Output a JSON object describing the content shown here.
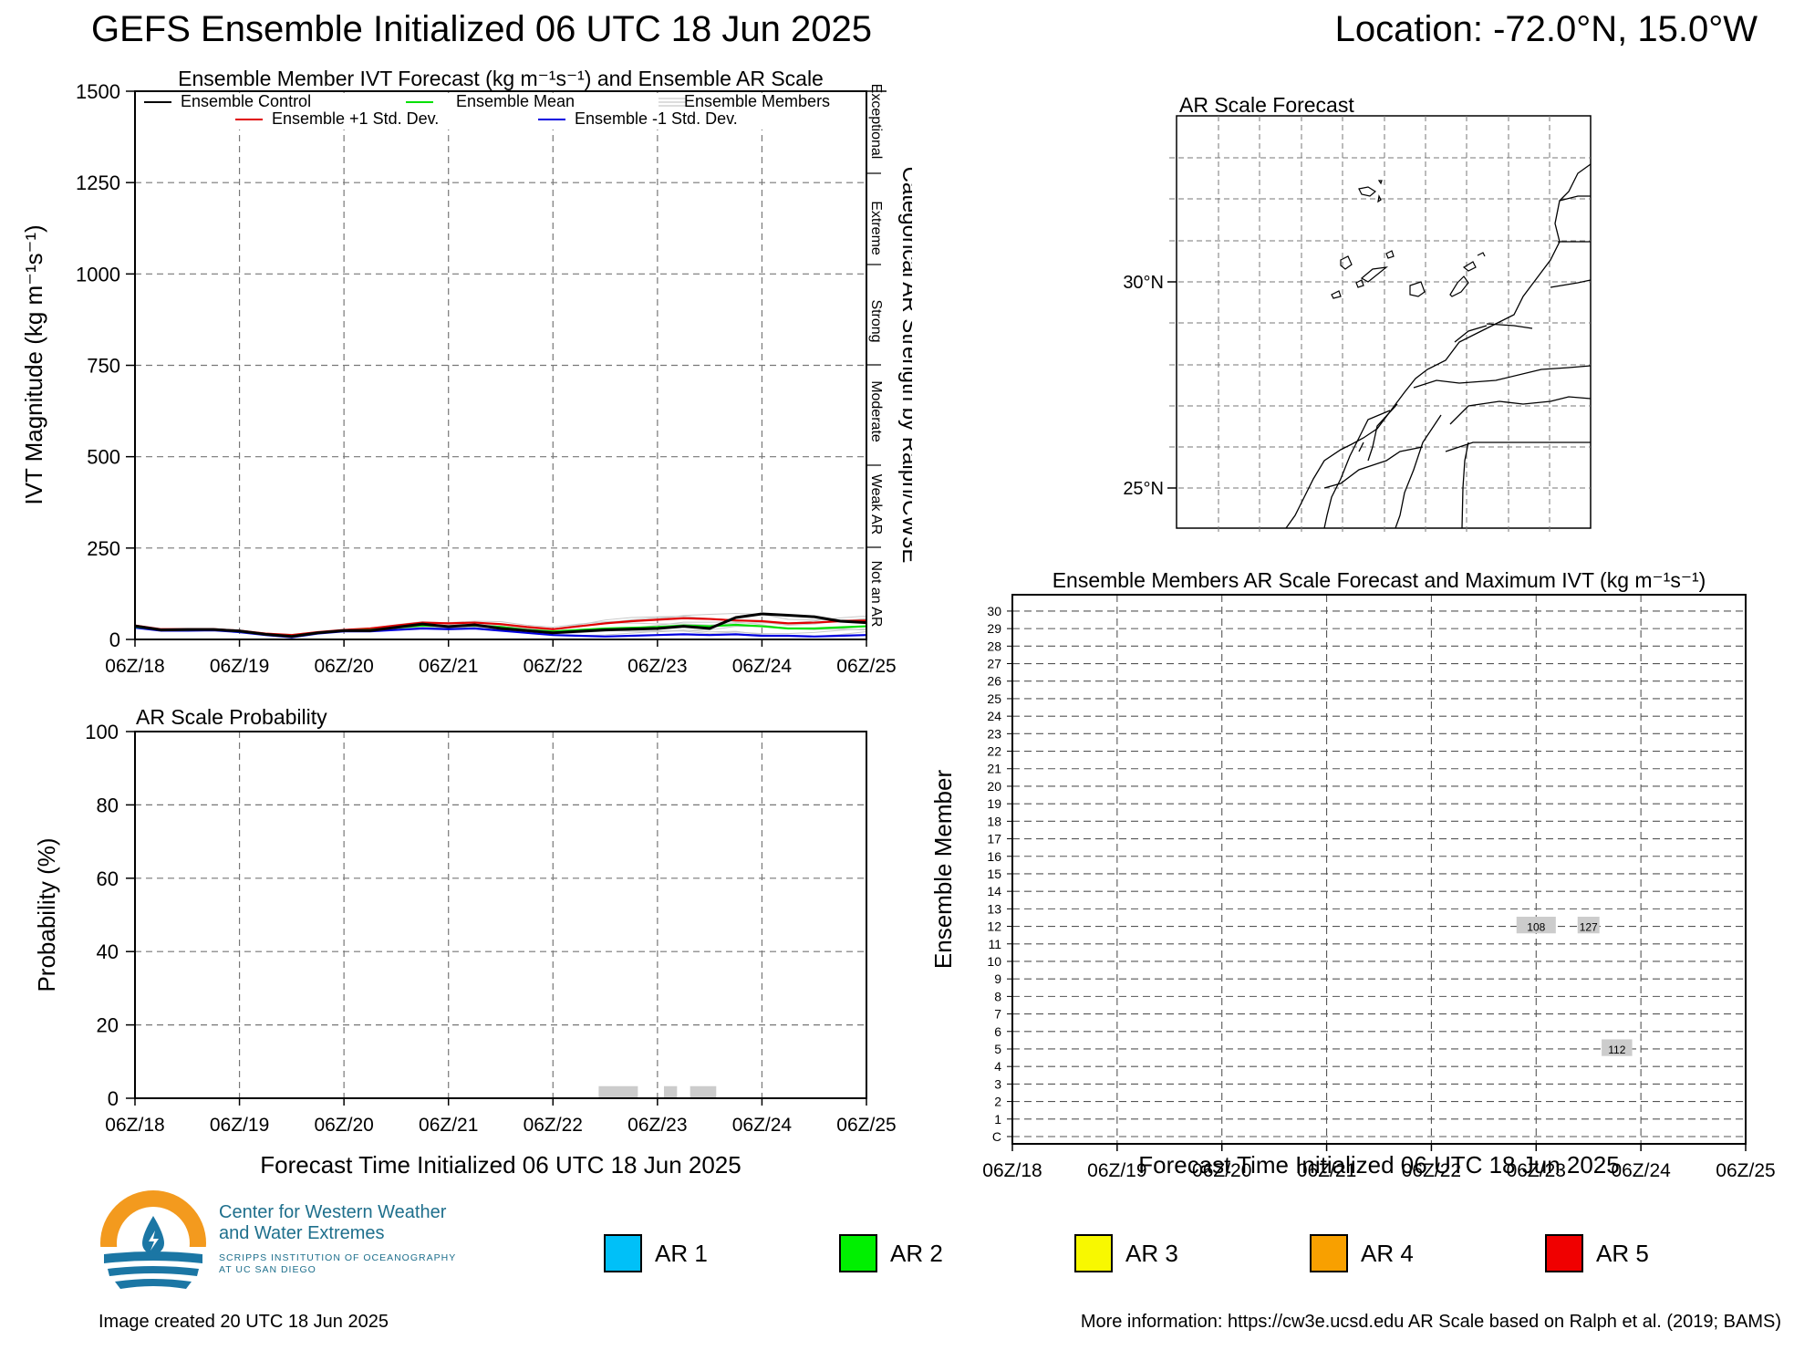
{
  "header": {
    "title": "GEFS Ensemble Initialized 06 UTC 18 Jun 2025",
    "location": "Location: -72.0°N, 15.0°W"
  },
  "x_ticks": [
    "06Z/18",
    "06Z/19",
    "06Z/20",
    "06Z/21",
    "06Z/22",
    "06Z/23",
    "06Z/24",
    "06Z/25"
  ],
  "x_axis_title": "Forecast Time Initialized 06 UTC 18 Jun 2025",
  "legend": {
    "control": "Ensemble Control",
    "mean": "Ensemble Mean",
    "members": "Ensemble Members",
    "plus": "Ensemble +1 Std. Dev.",
    "minus": "Ensemble -1 Std. Dev."
  },
  "ar_categories": [
    "Exceptional",
    "Extreme",
    "Strong",
    "Moderate",
    "Weak AR",
    "Not an AR"
  ],
  "ar_axis_title": "Categorical AR Strength by Ralph/CW3E",
  "map": {
    "title": "AR Scale Forecast",
    "lat_labels": [
      "30°N",
      "25°N"
    ]
  },
  "member_labels": [
    "C",
    "1",
    "2",
    "3",
    "4",
    "5",
    "6",
    "7",
    "8",
    "9",
    "10",
    "11",
    "12",
    "13",
    "14",
    "15",
    "16",
    "17",
    "18",
    "19",
    "20",
    "21",
    "22",
    "23",
    "24",
    "25",
    "26",
    "27",
    "28",
    "29",
    "30"
  ],
  "member_axis_title": "Ensemble Member",
  "ar_legend": [
    {
      "label": "AR 1",
      "color": "#00c0f8"
    },
    {
      "label": "AR 2",
      "color": "#00f000"
    },
    {
      "label": "AR 3",
      "color": "#f8f800"
    },
    {
      "label": "AR 4",
      "color": "#f8a000"
    },
    {
      "label": "AR 5",
      "color": "#f00000"
    }
  ],
  "logo": {
    "line1": "Center for Western Weather",
    "line2": "and Water Extremes",
    "line3": "SCRIPPS INSTITUTION OF OCEANOGRAPHY",
    "line4": "AT UC SAN DIEGO"
  },
  "footer": {
    "left": "Image created 20 UTC 18 Jun 2025",
    "right": "More information: https://cw3e.ucsd.edu AR Scale based on Ralph et al. (2019; BAMS)"
  },
  "chart_data": [
    {
      "type": "line",
      "title": "Ensemble Member IVT Forecast (kg m⁻¹s⁻¹) and Ensemble AR Scale",
      "ylabel": "IVT Magnitude (kg m⁻¹s⁻¹)",
      "ylim": [
        0,
        1500
      ],
      "yticks": [
        0,
        250,
        500,
        750,
        1000,
        1250,
        1500
      ],
      "xlim": [
        0,
        168
      ],
      "x": [
        0,
        6,
        12,
        18,
        24,
        30,
        36,
        42,
        48,
        54,
        60,
        66,
        72,
        78,
        84,
        90,
        96,
        102,
        108,
        114,
        120,
        126,
        132,
        138,
        144,
        150,
        156,
        162,
        168
      ],
      "series": [
        {
          "name": "Ensemble Control",
          "color": "#000000",
          "values": [
            37,
            26,
            27,
            27,
            23,
            14,
            8,
            18,
            24,
            24,
            33,
            42,
            35,
            40,
            30,
            24,
            18,
            22,
            26,
            28,
            30,
            36,
            30,
            60,
            70,
            66,
            62,
            50,
            46
          ]
        },
        {
          "name": "Ensemble Mean",
          "color": "#00e000",
          "values": [
            35,
            26,
            26,
            27,
            22,
            14,
            9,
            18,
            24,
            26,
            32,
            38,
            36,
            38,
            34,
            26,
            22,
            26,
            30,
            32,
            34,
            38,
            36,
            40,
            36,
            30,
            30,
            33,
            36
          ]
        },
        {
          "name": "Ensemble +1 Std. Dev.",
          "color": "#e00000",
          "values": [
            38,
            28,
            28,
            28,
            24,
            16,
            12,
            20,
            26,
            30,
            38,
            46,
            44,
            46,
            42,
            34,
            28,
            36,
            44,
            50,
            54,
            58,
            56,
            52,
            50,
            44,
            46,
            50,
            52
          ]
        },
        {
          "name": "Ensemble -1 Std. Dev.",
          "color": "#0000e0",
          "values": [
            32,
            24,
            24,
            25,
            20,
            12,
            6,
            16,
            22,
            22,
            26,
            30,
            28,
            30,
            24,
            18,
            12,
            10,
            8,
            10,
            12,
            14,
            12,
            14,
            10,
            10,
            8,
            10,
            12
          ]
        }
      ]
    },
    {
      "type": "bar",
      "title": "AR Scale Probability",
      "ylabel": "Probability (%)",
      "ylim": [
        0,
        100
      ],
      "yticks": [
        0,
        20,
        40,
        60,
        80,
        100
      ],
      "bars": [
        {
          "x0": 106.5,
          "x1": 115.5,
          "value": 3.3
        },
        {
          "x0": 121.5,
          "x1": 124.5,
          "value": 3.3
        },
        {
          "x0": 127.5,
          "x1": 133.5,
          "value": 3.3
        }
      ]
    },
    {
      "type": "heatmap",
      "title": "Ensemble Members AR Scale Forecast and Maximum IVT (kg m⁻¹s⁻¹)",
      "cells": [
        {
          "member": 12,
          "x0": 115.5,
          "x1": 124.5,
          "label": "108"
        },
        {
          "member": 12,
          "x0": 129.5,
          "x1": 134.5,
          "label": "127"
        },
        {
          "member": 5,
          "x0": 135,
          "x1": 142,
          "label": "112"
        }
      ]
    }
  ]
}
